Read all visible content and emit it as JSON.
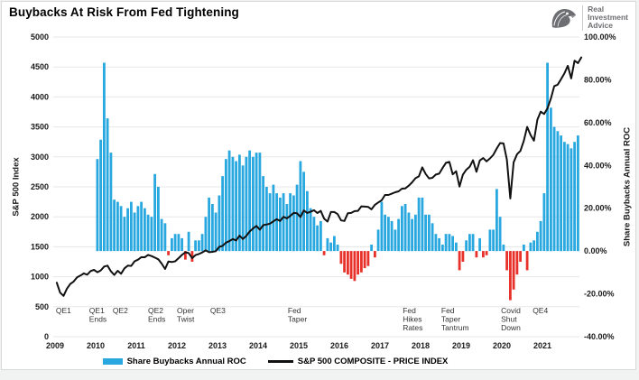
{
  "header": {
    "title": "Buybacks At Risk From Fed Tightening",
    "logo": {
      "line1": "Real",
      "line2": "Investment",
      "line3": "Advice"
    }
  },
  "chart_data": {
    "type": "bar+line combo",
    "title": "Buybacks At Risk From Fed Tightening",
    "grid": "horizontal only",
    "left_axis": {
      "label": "S&P 500 Index",
      "min": 0,
      "max": 5000,
      "step": 500
    },
    "right_axis": {
      "label": "Share Buybacks Annual ROC",
      "min": -40,
      "max": 100,
      "step": 20,
      "format": "percent2"
    },
    "x_axis": {
      "years": [
        2009,
        2010,
        2011,
        2012,
        2013,
        2014,
        2015,
        2016,
        2017,
        2018,
        2019,
        2020,
        2021
      ]
    },
    "series": [
      {
        "name": "Share Buybacks Annual ROC",
        "type": "bar",
        "axis": "right",
        "color_pos": "#29a8e0",
        "color_neg": "#e8312a",
        "start": {
          "year": 2010,
          "month": 1
        },
        "values": [
          43,
          52,
          88,
          62,
          46,
          24,
          23,
          21,
          16,
          20,
          23,
          18,
          21,
          23,
          20,
          17,
          16,
          36,
          30,
          15,
          13,
          -2,
          6,
          8,
          8,
          6,
          -4,
          9,
          -5,
          5,
          5,
          8,
          16,
          25,
          22,
          18,
          26,
          35,
          43,
          47,
          44,
          42,
          45,
          40,
          44,
          47,
          44,
          46,
          46,
          35,
          30,
          27,
          31,
          27,
          25,
          27,
          22,
          27,
          26,
          31,
          42,
          37,
          28,
          20,
          16,
          12,
          14,
          -2,
          6,
          4,
          7,
          3,
          -6,
          -10,
          -11,
          -13,
          -14,
          -11,
          -10,
          -8,
          -7,
          3,
          -3,
          10,
          23,
          17,
          16,
          14,
          10,
          15,
          21,
          22,
          18,
          15,
          17,
          25,
          25,
          17,
          17,
          13,
          8,
          6,
          3,
          8,
          8,
          7,
          4,
          -9,
          -5,
          5,
          8,
          8,
          -3,
          6,
          -3,
          -2,
          10,
          10,
          29,
          16,
          3,
          -9,
          -23,
          -18,
          -11,
          -5,
          3,
          -9,
          4,
          5,
          9,
          14,
          27,
          88,
          67,
          58,
          56,
          54,
          51,
          50,
          48,
          51,
          54
        ]
      },
      {
        "name": "S&P 500 COMPOSITE - PRICE INDEX",
        "type": "line",
        "axis": "left",
        "color": "#111111",
        "start": {
          "year": 2009,
          "month": 1
        },
        "values": [
          900,
          735,
          680,
          800,
          880,
          920,
          990,
          1020,
          1055,
          1035,
          1095,
          1115,
          1075,
          1105,
          1170,
          1185,
          1090,
          1030,
          1100,
          1050,
          1140,
          1185,
          1180,
          1258,
          1285,
          1327,
          1325,
          1365,
          1345,
          1320,
          1290,
          1220,
          1130,
          1255,
          1245,
          1258,
          1310,
          1365,
          1408,
          1395,
          1310,
          1362,
          1380,
          1405,
          1440,
          1410,
          1415,
          1426,
          1498,
          1515,
          1570,
          1595,
          1630,
          1605,
          1685,
          1630,
          1680,
          1755,
          1805,
          1848,
          1785,
          1860,
          1872,
          1885,
          1925,
          1960,
          1930,
          2000,
          1975,
          2015,
          2065,
          2060,
          1995,
          2105,
          2065,
          2085,
          2110,
          2063,
          2100,
          1970,
          1920,
          2080,
          2080,
          2045,
          1940,
          1930,
          2060,
          2065,
          2095,
          2100,
          2175,
          2170,
          2165,
          2125,
          2200,
          2240,
          2275,
          2365,
          2365,
          2385,
          2410,
          2425,
          2470,
          2475,
          2520,
          2575,
          2645,
          2675,
          2825,
          2715,
          2640,
          2650,
          2705,
          2720,
          2815,
          2900,
          2915,
          2710,
          2760,
          2505,
          2705,
          2785,
          2835,
          2945,
          2750,
          2940,
          2980,
          2925,
          2975,
          3035,
          3140,
          3230,
          3225,
          2955,
          2305,
          2910,
          3045,
          3100,
          3270,
          3500,
          3365,
          3270,
          3620,
          3755,
          3715,
          3810,
          3975,
          4180,
          4205,
          4295,
          4395,
          4520,
          4310,
          4605,
          4565,
          4660
        ]
      }
    ],
    "annotations": [
      {
        "t": 2009.02,
        "lines": [
          "QE1"
        ]
      },
      {
        "t": 2009.84,
        "lines": [
          "QE1",
          "Ends"
        ]
      },
      {
        "t": 2010.42,
        "lines": [
          "QE2"
        ]
      },
      {
        "t": 2011.29,
        "lines": [
          "QE2",
          "Ends"
        ]
      },
      {
        "t": 2012.0,
        "lines": [
          "Oper",
          "Twist"
        ]
      },
      {
        "t": 2012.82,
        "lines": [
          "QE3"
        ]
      },
      {
        "t": 2014.73,
        "lines": [
          "Fed",
          "Taper"
        ]
      },
      {
        "t": 2017.56,
        "lines": [
          "Fed",
          "Hikes",
          "Rates"
        ]
      },
      {
        "t": 2018.51,
        "lines": [
          "Fed",
          "Taper",
          "Tantrum"
        ]
      },
      {
        "t": 2019.98,
        "lines": [
          "Covid",
          "Shut",
          "Down"
        ]
      },
      {
        "t": 2020.76,
        "lines": [
          "QE4"
        ]
      }
    ]
  },
  "legend": {
    "items": [
      {
        "label": "Share Buybacks Annual ROC",
        "swatch": "bar"
      },
      {
        "label": "S&P 500 COMPOSITE - PRICE INDEX",
        "swatch": "line"
      }
    ]
  }
}
